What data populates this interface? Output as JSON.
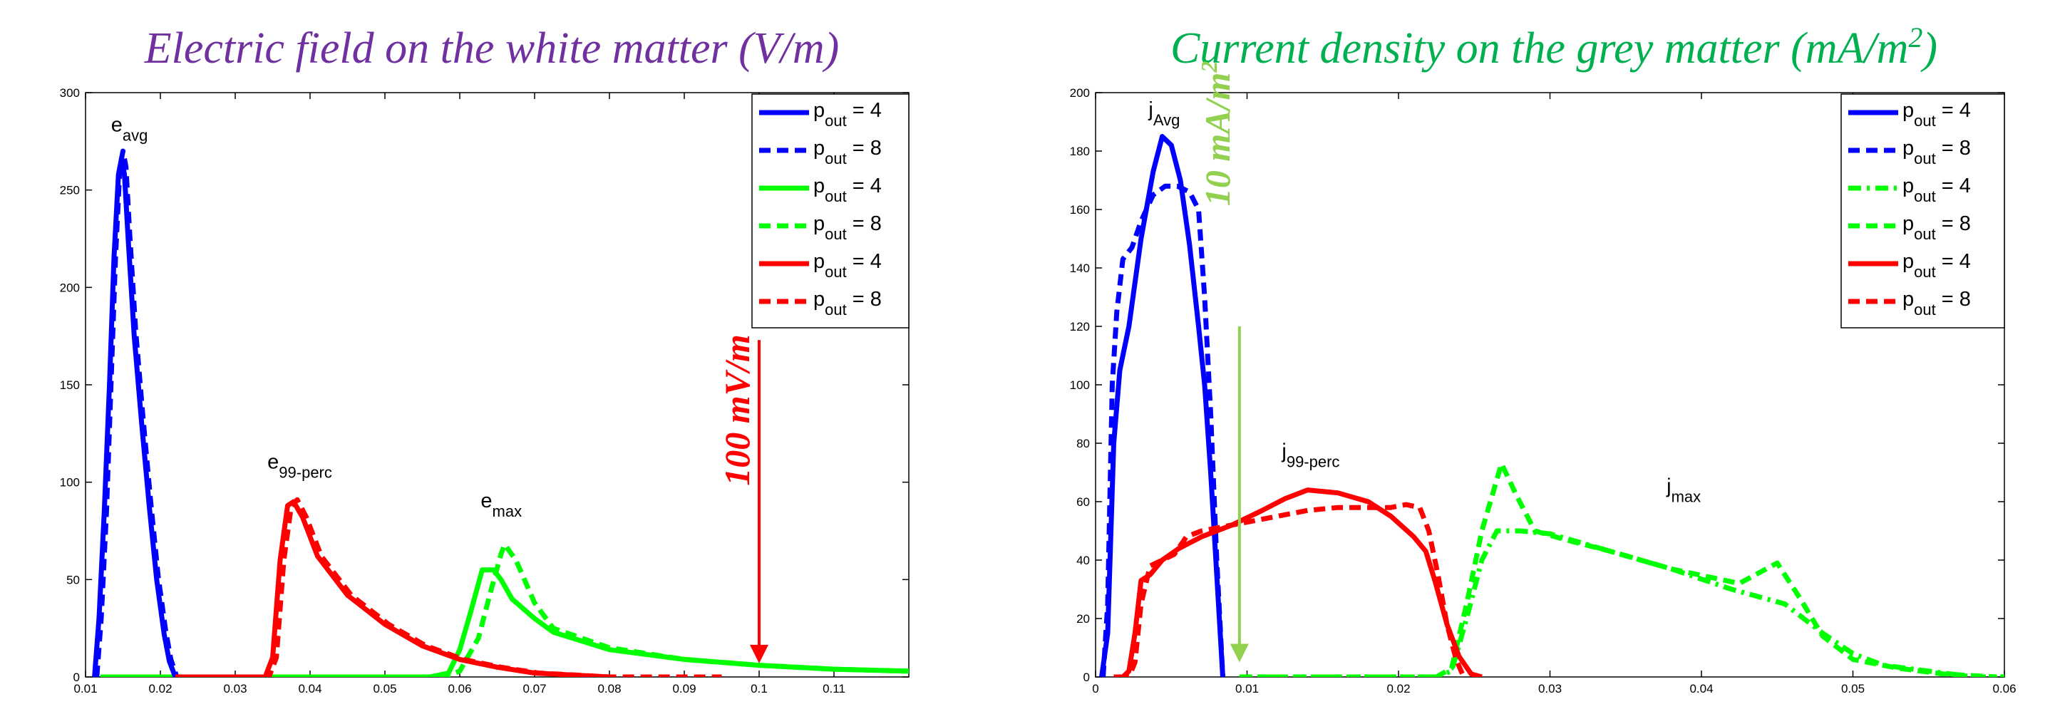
{
  "chart_data": [
    {
      "type": "line",
      "title": "Electric field on the white matter (V/m)",
      "title_color": "#7030A0",
      "xlim": [
        0.01,
        0.12
      ],
      "ylim": [
        0,
        300
      ],
      "xticks": [
        0.01,
        0.02,
        0.03,
        0.04,
        0.05,
        0.06,
        0.07,
        0.08,
        0.09,
        0.1,
        0.11
      ],
      "xtick_labels": [
        "0.01",
        "0.02",
        "0.03",
        "0.04",
        "0.05",
        "0.06",
        "0.07",
        "0.08",
        "0.09",
        "0.1",
        "0.11"
      ],
      "yticks": [
        0,
        50,
        100,
        150,
        200,
        250,
        300
      ],
      "ytick_labels": [
        "0",
        "50",
        "100",
        "150",
        "200",
        "250",
        "300"
      ],
      "legend_position": "top-right",
      "legend": [
        {
          "base": "p",
          "sub": "out",
          "rest": " = 4",
          "color": "#0000FF",
          "dash": "solid"
        },
        {
          "base": "p",
          "sub": "out",
          "rest": " = 8",
          "color": "#0000FF",
          "dash": "dashed"
        },
        {
          "base": "p",
          "sub": "out",
          "rest": " = 4",
          "color": "#00FF00",
          "dash": "solid"
        },
        {
          "base": "p",
          "sub": "out",
          "rest": " = 8",
          "color": "#00FF00",
          "dash": "dashed"
        },
        {
          "base": "p",
          "sub": "out",
          "rest": " = 4",
          "color": "#FF0000",
          "dash": "solid"
        },
        {
          "base": "p",
          "sub": "out",
          "rest": " = 8",
          "color": "#FF0000",
          "dash": "dashed"
        }
      ],
      "curve_labels": [
        {
          "base": "e",
          "sub": "avg",
          "x": 0.0134,
          "y": 280
        },
        {
          "base": "e",
          "sub": "99-perc",
          "x": 0.0343,
          "y": 107
        },
        {
          "base": "e",
          "sub": "max",
          "x": 0.0628,
          "y": 87
        }
      ],
      "annotation": {
        "text": "100 mV/m",
        "color": "#FF0000",
        "x": 0.1,
        "y_top": 173,
        "y_bottom": 7,
        "text_y": 137
      },
      "series": [
        {
          "color": "#00FF00",
          "dash": "solid",
          "x": [
            0.012,
            0.02,
            0.03,
            0.04,
            0.05,
            0.056,
            0.0585,
            0.06,
            0.0615,
            0.063,
            0.0645,
            0.0655,
            0.067,
            0.07,
            0.0725,
            0.08,
            0.09,
            0.1,
            0.11,
            0.12
          ],
          "y": [
            0,
            0,
            0,
            0,
            0,
            0,
            2,
            14,
            34,
            55,
            55,
            50,
            40,
            30,
            23,
            14,
            9,
            6,
            4,
            3
          ]
        },
        {
          "color": "#00FF00",
          "dash": "dashed",
          "x": [
            0.012,
            0.02,
            0.03,
            0.04,
            0.05,
            0.058,
            0.06,
            0.0625,
            0.064,
            0.0655,
            0.066,
            0.0675,
            0.07,
            0.0725,
            0.08,
            0.09,
            0.1,
            0.11,
            0.12
          ],
          "y": [
            0,
            0,
            0,
            0,
            0,
            0,
            3,
            20,
            42,
            63,
            68,
            60,
            38,
            25,
            15,
            9,
            6,
            4,
            3
          ]
        },
        {
          "color": "#0000FF",
          "dash": "solid",
          "x": [
            0.0112,
            0.0118,
            0.0125,
            0.0132,
            0.0138,
            0.0144,
            0.0148,
            0.0152,
            0.0157,
            0.0165,
            0.0175,
            0.0185,
            0.0195,
            0.0205,
            0.0212,
            0.022
          ],
          "y": [
            0,
            30,
            85,
            150,
            215,
            258,
            266,
            258,
            225,
            175,
            130,
            88,
            50,
            22,
            8,
            0
          ]
        },
        {
          "color": "#0000FF",
          "dash": "dashed",
          "x": [
            0.0115,
            0.0121,
            0.0128,
            0.0134,
            0.014,
            0.0146,
            0.015,
            0.0154,
            0.0159,
            0.0167,
            0.0177,
            0.0187,
            0.0197,
            0.0207,
            0.0214,
            0.0222
          ],
          "y": [
            0,
            30,
            85,
            150,
            215,
            262,
            270,
            262,
            228,
            178,
            132,
            90,
            52,
            24,
            9,
            0
          ]
        },
        {
          "color": "#FF0000",
          "dash": "solid",
          "x": [
            0.022,
            0.03,
            0.034,
            0.035,
            0.036,
            0.037,
            0.0378,
            0.039,
            0.041,
            0.045,
            0.05,
            0.055,
            0.06,
            0.065,
            0.07,
            0.075,
            0.08
          ],
          "y": [
            0,
            0,
            0,
            10,
            60,
            88,
            90,
            82,
            62,
            42,
            27,
            16,
            9,
            5,
            2,
            1,
            0
          ]
        },
        {
          "color": "#FF0000",
          "dash": "dashed",
          "x": [
            0.022,
            0.03,
            0.0345,
            0.0355,
            0.0365,
            0.0375,
            0.0383,
            0.0395,
            0.0415,
            0.0455,
            0.0505,
            0.0555,
            0.0605,
            0.0655,
            0.0705,
            0.0755,
            0.08,
            0.085,
            0.09,
            0.095
          ],
          "y": [
            0,
            0,
            0,
            10,
            60,
            88,
            91,
            82,
            62,
            42,
            27,
            16,
            9,
            5,
            2,
            1,
            0,
            0,
            0,
            0
          ]
        }
      ]
    },
    {
      "type": "line",
      "title": "Current density on the grey matter (mA/m",
      "title_sup": "2",
      "title_end": ")",
      "title_color": "#00B050",
      "xlim": [
        0,
        0.06
      ],
      "ylim": [
        0,
        200
      ],
      "xticks": [
        0,
        0.01,
        0.02,
        0.03,
        0.04,
        0.05,
        0.06
      ],
      "xtick_labels": [
        "0",
        "0.01",
        "0.02",
        "0.03",
        "0.04",
        "0.05",
        "0.06"
      ],
      "yticks": [
        0,
        20,
        40,
        60,
        80,
        100,
        120,
        140,
        160,
        180,
        200
      ],
      "ytick_labels": [
        "0",
        "20",
        "40",
        "60",
        "80",
        "100",
        "120",
        "140",
        "160",
        "180",
        "200"
      ],
      "legend_position": "top-right",
      "legend": [
        {
          "base": "p",
          "sub": "out",
          "rest": " = 4",
          "color": "#0000FF",
          "dash": "solid"
        },
        {
          "base": "p",
          "sub": "out",
          "rest": " = 8",
          "color": "#0000FF",
          "dash": "dashed"
        },
        {
          "base": "p",
          "sub": "out",
          "rest": " = 4",
          "color": "#00FF00",
          "dash": "dashdot"
        },
        {
          "base": "p",
          "sub": "out",
          "rest": " = 8",
          "color": "#00FF00",
          "dash": "dashed"
        },
        {
          "base": "p",
          "sub": "out",
          "rest": " = 4",
          "color": "#FF0000",
          "dash": "solid"
        },
        {
          "base": "p",
          "sub": "out",
          "rest": " = 8",
          "color": "#FF0000",
          "dash": "dashed"
        }
      ],
      "curve_labels": [
        {
          "base": "j",
          "sub": "Avg",
          "x": 0.0035,
          "y": 192
        },
        {
          "base": "j",
          "sub": "99-perc",
          "x": 0.0123,
          "y": 75
        },
        {
          "base": "j",
          "sub": "max",
          "x": 0.0377,
          "y": 63
        }
      ],
      "annotation": {
        "text": "10 mA/m",
        "sup": "2",
        "color": "#92D050",
        "x": 0.0095,
        "y_top": 120,
        "y_bottom": 5,
        "text_y": 186
      },
      "series": [
        {
          "color": "#0000FF",
          "dash": "solid",
          "x": [
            0.0004,
            0.0008,
            0.0012,
            0.0016,
            0.0022,
            0.003,
            0.0038,
            0.0044,
            0.005,
            0.0056,
            0.0062,
            0.0068,
            0.0072,
            0.0076,
            0.008,
            0.0084
          ],
          "y": [
            0,
            15,
            80,
            105,
            120,
            150,
            173,
            185,
            182,
            170,
            148,
            120,
            100,
            70,
            35,
            0
          ]
        },
        {
          "color": "#0000FF",
          "dash": "dashed",
          "x": [
            0.0005,
            0.0008,
            0.0011,
            0.0014,
            0.0018,
            0.0024,
            0.003,
            0.0038,
            0.0046,
            0.0054,
            0.0062,
            0.0068,
            0.0072,
            0.0076,
            0.008,
            0.0084
          ],
          "y": [
            0,
            25,
            100,
            125,
            143,
            147,
            156,
            165,
            168,
            168,
            166,
            160,
            130,
            90,
            40,
            0
          ]
        },
        {
          "color": "#00FF00",
          "dash": "dashdot",
          "x": [
            0.0095,
            0.012,
            0.015,
            0.018,
            0.021,
            0.0225,
            0.0235,
            0.0245,
            0.0255,
            0.0265,
            0.028,
            0.03,
            0.034,
            0.038,
            0.042,
            0.0455,
            0.048,
            0.05,
            0.052,
            0.055,
            0.058,
            0.06
          ],
          "y": [
            0,
            0,
            0,
            0,
            0,
            0,
            2,
            20,
            40,
            50,
            50,
            49,
            43,
            37,
            30,
            25,
            15,
            8,
            4,
            2,
            0,
            0
          ]
        },
        {
          "color": "#00FF00",
          "dash": "dashed",
          "x": [
            0.0095,
            0.012,
            0.015,
            0.018,
            0.021,
            0.0225,
            0.0235,
            0.0245,
            0.0255,
            0.0268,
            0.0278,
            0.029,
            0.031,
            0.034,
            0.038,
            0.0425,
            0.045,
            0.0465,
            0.048,
            0.05,
            0.053,
            0.056,
            0.0595
          ],
          "y": [
            0,
            0,
            0,
            0,
            0,
            0,
            3,
            25,
            50,
            73,
            62,
            50,
            47,
            43,
            37,
            32,
            39,
            27,
            14,
            6,
            3,
            1,
            0
          ]
        },
        {
          "color": "#FF0000",
          "dash": "solid",
          "x": [
            0.0012,
            0.0018,
            0.0022,
            0.0026,
            0.003,
            0.0036,
            0.0044,
            0.0055,
            0.007,
            0.009,
            0.011,
            0.0125,
            0.014,
            0.016,
            0.018,
            0.0195,
            0.021,
            0.0218,
            0.0224,
            0.0232,
            0.024,
            0.0248,
            0.0255
          ],
          "y": [
            0,
            0,
            2,
            15,
            33,
            35,
            40,
            44,
            48,
            52,
            57,
            61,
            64,
            63,
            60,
            55,
            48,
            43,
            33,
            18,
            7,
            1,
            0
          ]
        },
        {
          "color": "#FF0000",
          "dash": "dashed",
          "x": [
            0.0015,
            0.0022,
            0.0026,
            0.003,
            0.0036,
            0.0044,
            0.0052,
            0.006,
            0.007,
            0.008,
            0.01,
            0.012,
            0.014,
            0.016,
            0.018,
            0.0195,
            0.0205,
            0.0214,
            0.022,
            0.0226,
            0.0232,
            0.0238,
            0.0243
          ],
          "y": [
            0,
            0,
            5,
            25,
            38,
            40,
            42,
            48,
            50,
            51,
            53,
            55,
            57,
            58,
            58,
            58,
            59,
            58,
            50,
            35,
            18,
            6,
            0
          ]
        }
      ]
    }
  ]
}
